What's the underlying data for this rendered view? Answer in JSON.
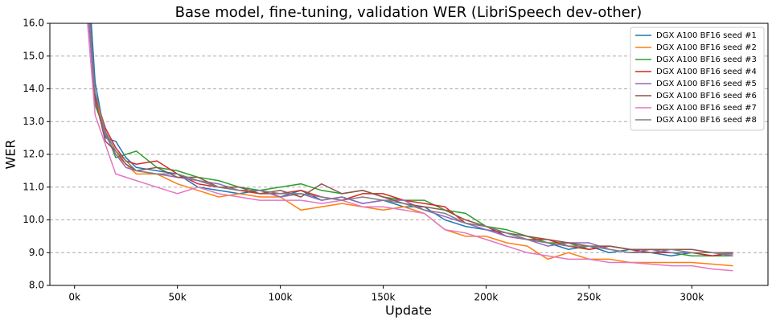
{
  "chart_data": {
    "type": "line",
    "title": "Base model, fine-tuning, validation WER (LibriSpeech dev-other)",
    "x_label": "Update",
    "y_label": "WER",
    "x": [
      5000,
      10000,
      15000,
      20000,
      25000,
      30000,
      40000,
      50000,
      60000,
      70000,
      80000,
      90000,
      100000,
      110000,
      120000,
      130000,
      140000,
      150000,
      160000,
      170000,
      180000,
      190000,
      200000,
      210000,
      220000,
      230000,
      240000,
      250000,
      260000,
      270000,
      280000,
      290000,
      300000,
      310000,
      320000
    ],
    "series": [
      {
        "name": "DGX A100 BF16 seed #1",
        "color": "#1f77b4",
        "values": [
          19,
          14.2,
          12.5,
          12.4,
          11.9,
          11.6,
          11.5,
          11.4,
          11.0,
          10.9,
          10.8,
          10.9,
          10.7,
          10.9,
          10.6,
          10.7,
          10.5,
          10.6,
          10.4,
          10.4,
          10.0,
          9.8,
          9.7,
          9.6,
          9.4,
          9.3,
          9.1,
          9.2,
          9.0,
          9.1,
          9.0,
          8.9,
          9.0,
          8.9,
          9.0
        ]
      },
      {
        "name": "DGX A100 BF16 seed #2",
        "color": "#ff7f0e",
        "values": [
          17.5,
          13.8,
          12.6,
          12.0,
          11.7,
          11.4,
          11.4,
          11.1,
          10.9,
          10.7,
          10.8,
          10.7,
          10.7,
          10.3,
          10.4,
          10.5,
          10.4,
          10.3,
          10.4,
          10.2,
          9.7,
          9.5,
          9.5,
          9.3,
          9.2,
          8.8,
          9.0,
          8.8,
          8.8,
          8.7,
          8.7,
          8.7,
          8.7,
          8.65,
          8.6
        ]
      },
      {
        "name": "DGX A100 BF16 seed #3",
        "color": "#2ca02c",
        "values": [
          18,
          13.5,
          12.7,
          11.9,
          12.0,
          12.1,
          11.6,
          11.5,
          11.3,
          11.2,
          11.0,
          10.9,
          11.0,
          11.1,
          10.9,
          10.8,
          10.9,
          10.7,
          10.6,
          10.6,
          10.3,
          10.2,
          9.8,
          9.7,
          9.5,
          9.3,
          9.3,
          9.1,
          9.2,
          9.1,
          9.0,
          9.0,
          8.9,
          8.9,
          8.9
        ]
      },
      {
        "name": "DGX A100 BF16 seed #4",
        "color": "#d62728",
        "values": [
          18,
          13.8,
          12.8,
          12.2,
          11.8,
          11.7,
          11.8,
          11.4,
          11.1,
          11.0,
          10.9,
          10.8,
          10.8,
          10.9,
          10.7,
          10.6,
          10.8,
          10.8,
          10.6,
          10.5,
          10.4,
          9.9,
          9.8,
          9.5,
          9.4,
          9.4,
          9.2,
          9.1,
          9.2,
          9.1,
          9.0,
          9.0,
          9.0,
          8.9,
          9.0
        ]
      },
      {
        "name": "DGX A100 BF16 seed #5",
        "color": "#9467bd",
        "values": [
          17.5,
          13.6,
          12.6,
          12.0,
          11.6,
          11.5,
          11.4,
          11.3,
          11.2,
          11.1,
          10.9,
          10.9,
          10.7,
          10.8,
          10.6,
          10.7,
          10.5,
          10.6,
          10.6,
          10.3,
          10.1,
          9.9,
          9.7,
          9.5,
          9.4,
          9.2,
          9.3,
          9.3,
          9.1,
          9.0,
          9.1,
          9.0,
          9.0,
          9.0,
          8.9
        ]
      },
      {
        "name": "DGX A100 BF16 seed #6",
        "color": "#8c564b",
        "values": [
          18.5,
          13.7,
          12.4,
          12.1,
          11.7,
          11.5,
          11.6,
          11.3,
          11.3,
          11.0,
          11.0,
          10.8,
          10.9,
          10.7,
          11.1,
          10.8,
          10.9,
          10.7,
          10.5,
          10.4,
          10.3,
          10.0,
          9.8,
          9.6,
          9.5,
          9.4,
          9.3,
          9.2,
          9.2,
          9.1,
          9.1,
          9.1,
          9.1,
          9.0,
          9.0
        ]
      },
      {
        "name": "DGX A100 BF16 seed #7",
        "color": "#e377c2",
        "values": [
          17,
          13.2,
          12.3,
          11.4,
          11.3,
          11.2,
          11.0,
          10.8,
          11.0,
          10.8,
          10.7,
          10.6,
          10.6,
          10.6,
          10.5,
          10.6,
          10.4,
          10.4,
          10.3,
          10.2,
          9.7,
          9.6,
          9.4,
          9.2,
          9.0,
          8.9,
          8.8,
          8.8,
          8.7,
          8.7,
          8.65,
          8.6,
          8.6,
          8.5,
          8.45
        ]
      },
      {
        "name": "DGX A100 BF16 seed #8",
        "color": "#7f7f7f",
        "values": [
          18,
          13.9,
          12.7,
          12.1,
          11.8,
          11.5,
          11.4,
          11.4,
          11.2,
          11.0,
          10.9,
          10.9,
          10.8,
          10.8,
          10.7,
          10.6,
          10.7,
          10.6,
          10.5,
          10.3,
          10.2,
          9.9,
          9.8,
          9.6,
          9.4,
          9.3,
          9.2,
          9.2,
          9.1,
          9.0,
          9.0,
          9.1,
          9.0,
          9.0,
          8.95
        ]
      }
    ],
    "xlim": [
      -12000,
      337000
    ],
    "ylim": [
      8,
      16
    ],
    "xticks": [
      {
        "value": 0,
        "label": "0k"
      },
      {
        "value": 50000,
        "label": "50k"
      },
      {
        "value": 100000,
        "label": "100k"
      },
      {
        "value": 150000,
        "label": "150k"
      },
      {
        "value": 200000,
        "label": "200k"
      },
      {
        "value": 250000,
        "label": "250k"
      },
      {
        "value": 300000,
        "label": "300k"
      }
    ],
    "yticks": [
      {
        "value": 8,
        "label": "8.0"
      },
      {
        "value": 9,
        "label": "9.0"
      },
      {
        "value": 10,
        "label": "10.0"
      },
      {
        "value": 11,
        "label": "11.0"
      },
      {
        "value": 12,
        "label": "12.0"
      },
      {
        "value": 13,
        "label": "13.0"
      },
      {
        "value": 14,
        "label": "14.0"
      },
      {
        "value": 15,
        "label": "15.0"
      },
      {
        "value": 16,
        "label": "16.0"
      }
    ],
    "grid": "y",
    "legend": "upper right"
  }
}
